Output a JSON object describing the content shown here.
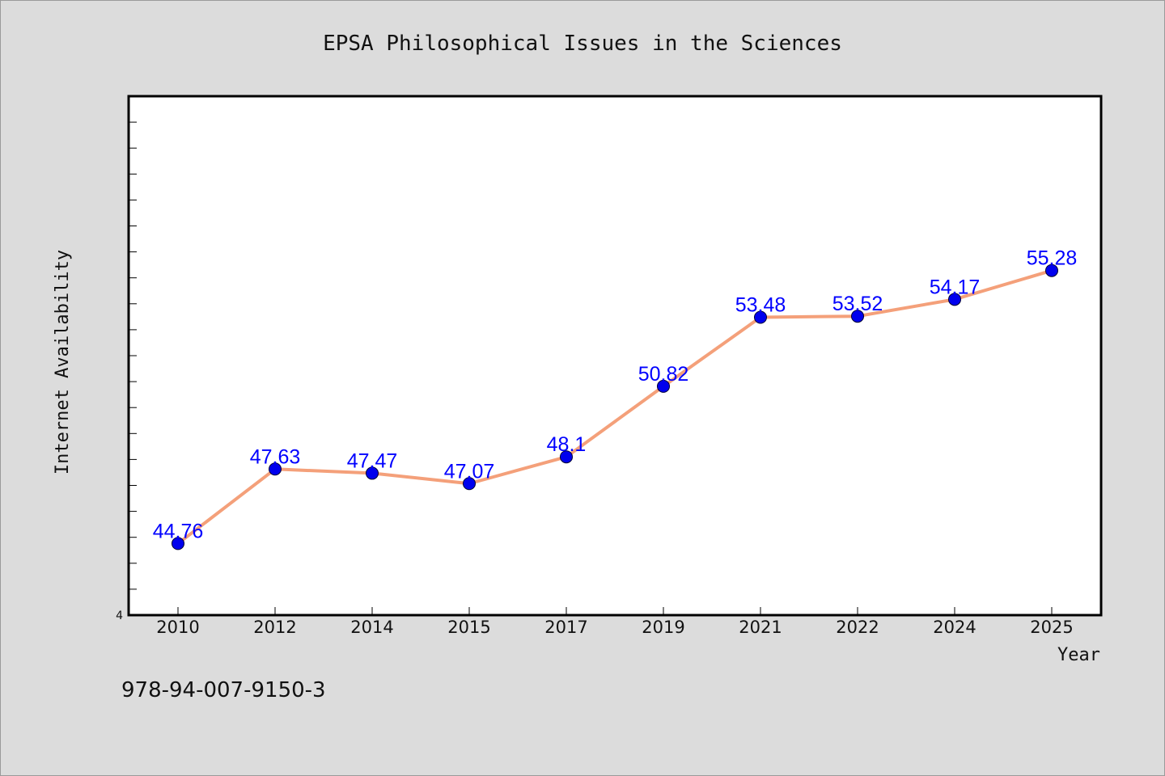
{
  "chart_data": {
    "type": "line",
    "title": "EPSA Philosophical Issues in the Sciences",
    "xlabel": "Year",
    "ylabel": "Internet Availability",
    "categories": [
      "2010",
      "2012",
      "2014",
      "2015",
      "2017",
      "2019",
      "2021",
      "2022",
      "2024",
      "2025"
    ],
    "series": [
      {
        "values": [
          44.76,
          47.63,
          47.47,
          47.07,
          48.1,
          50.82,
          53.48,
          53.52,
          54.17,
          55.28
        ],
        "labels": [
          "44.76",
          "47.63",
          "47.47",
          "47.07",
          "48.1",
          "50.82",
          "53.48",
          "53.52",
          "54.17",
          "55.28"
        ]
      }
    ],
    "ylim": [
      42,
      62
    ],
    "y_tick_labels": [
      "4"
    ],
    "grid": false,
    "colors": {
      "line": "#f4a07a",
      "marker": "#0000ee",
      "label": "#0000ff",
      "background": "#dcdcdc",
      "plot_area": "#ffffff"
    }
  },
  "footer_text": "978-94-007-9150-3"
}
